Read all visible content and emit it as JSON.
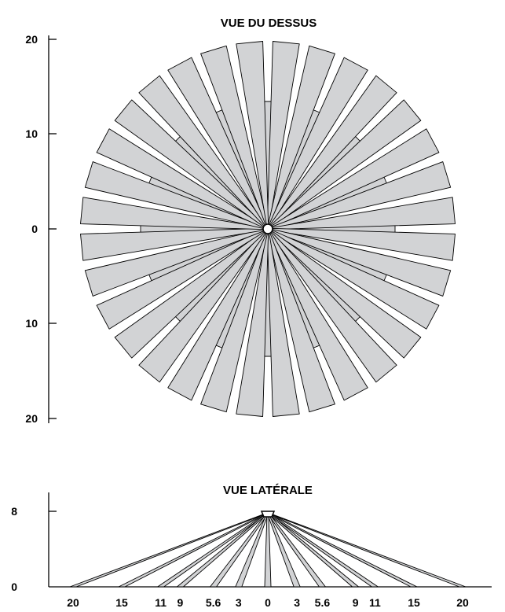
{
  "top_view": {
    "title": "VUE DU DESSUS",
    "y_ticks": [
      "20",
      "10",
      "0",
      "10",
      "20"
    ],
    "long_zone_count": 32,
    "fill_color": "#d2d3d5"
  },
  "side_view": {
    "title": "VUE LATÉRALE",
    "y_ticks": [
      "8",
      "0"
    ],
    "x_ticks": [
      "20",
      "15",
      "11",
      "9",
      "5.6",
      "3",
      "0",
      "3",
      "5.6",
      "9",
      "11",
      "15",
      "20"
    ],
    "x_values": [
      -20,
      -15,
      -11,
      -9,
      -5.6,
      -3,
      0,
      3,
      5.6,
      9,
      11,
      15,
      20
    ],
    "sensor_height": 8,
    "fill_color": "#d2d3d5"
  }
}
